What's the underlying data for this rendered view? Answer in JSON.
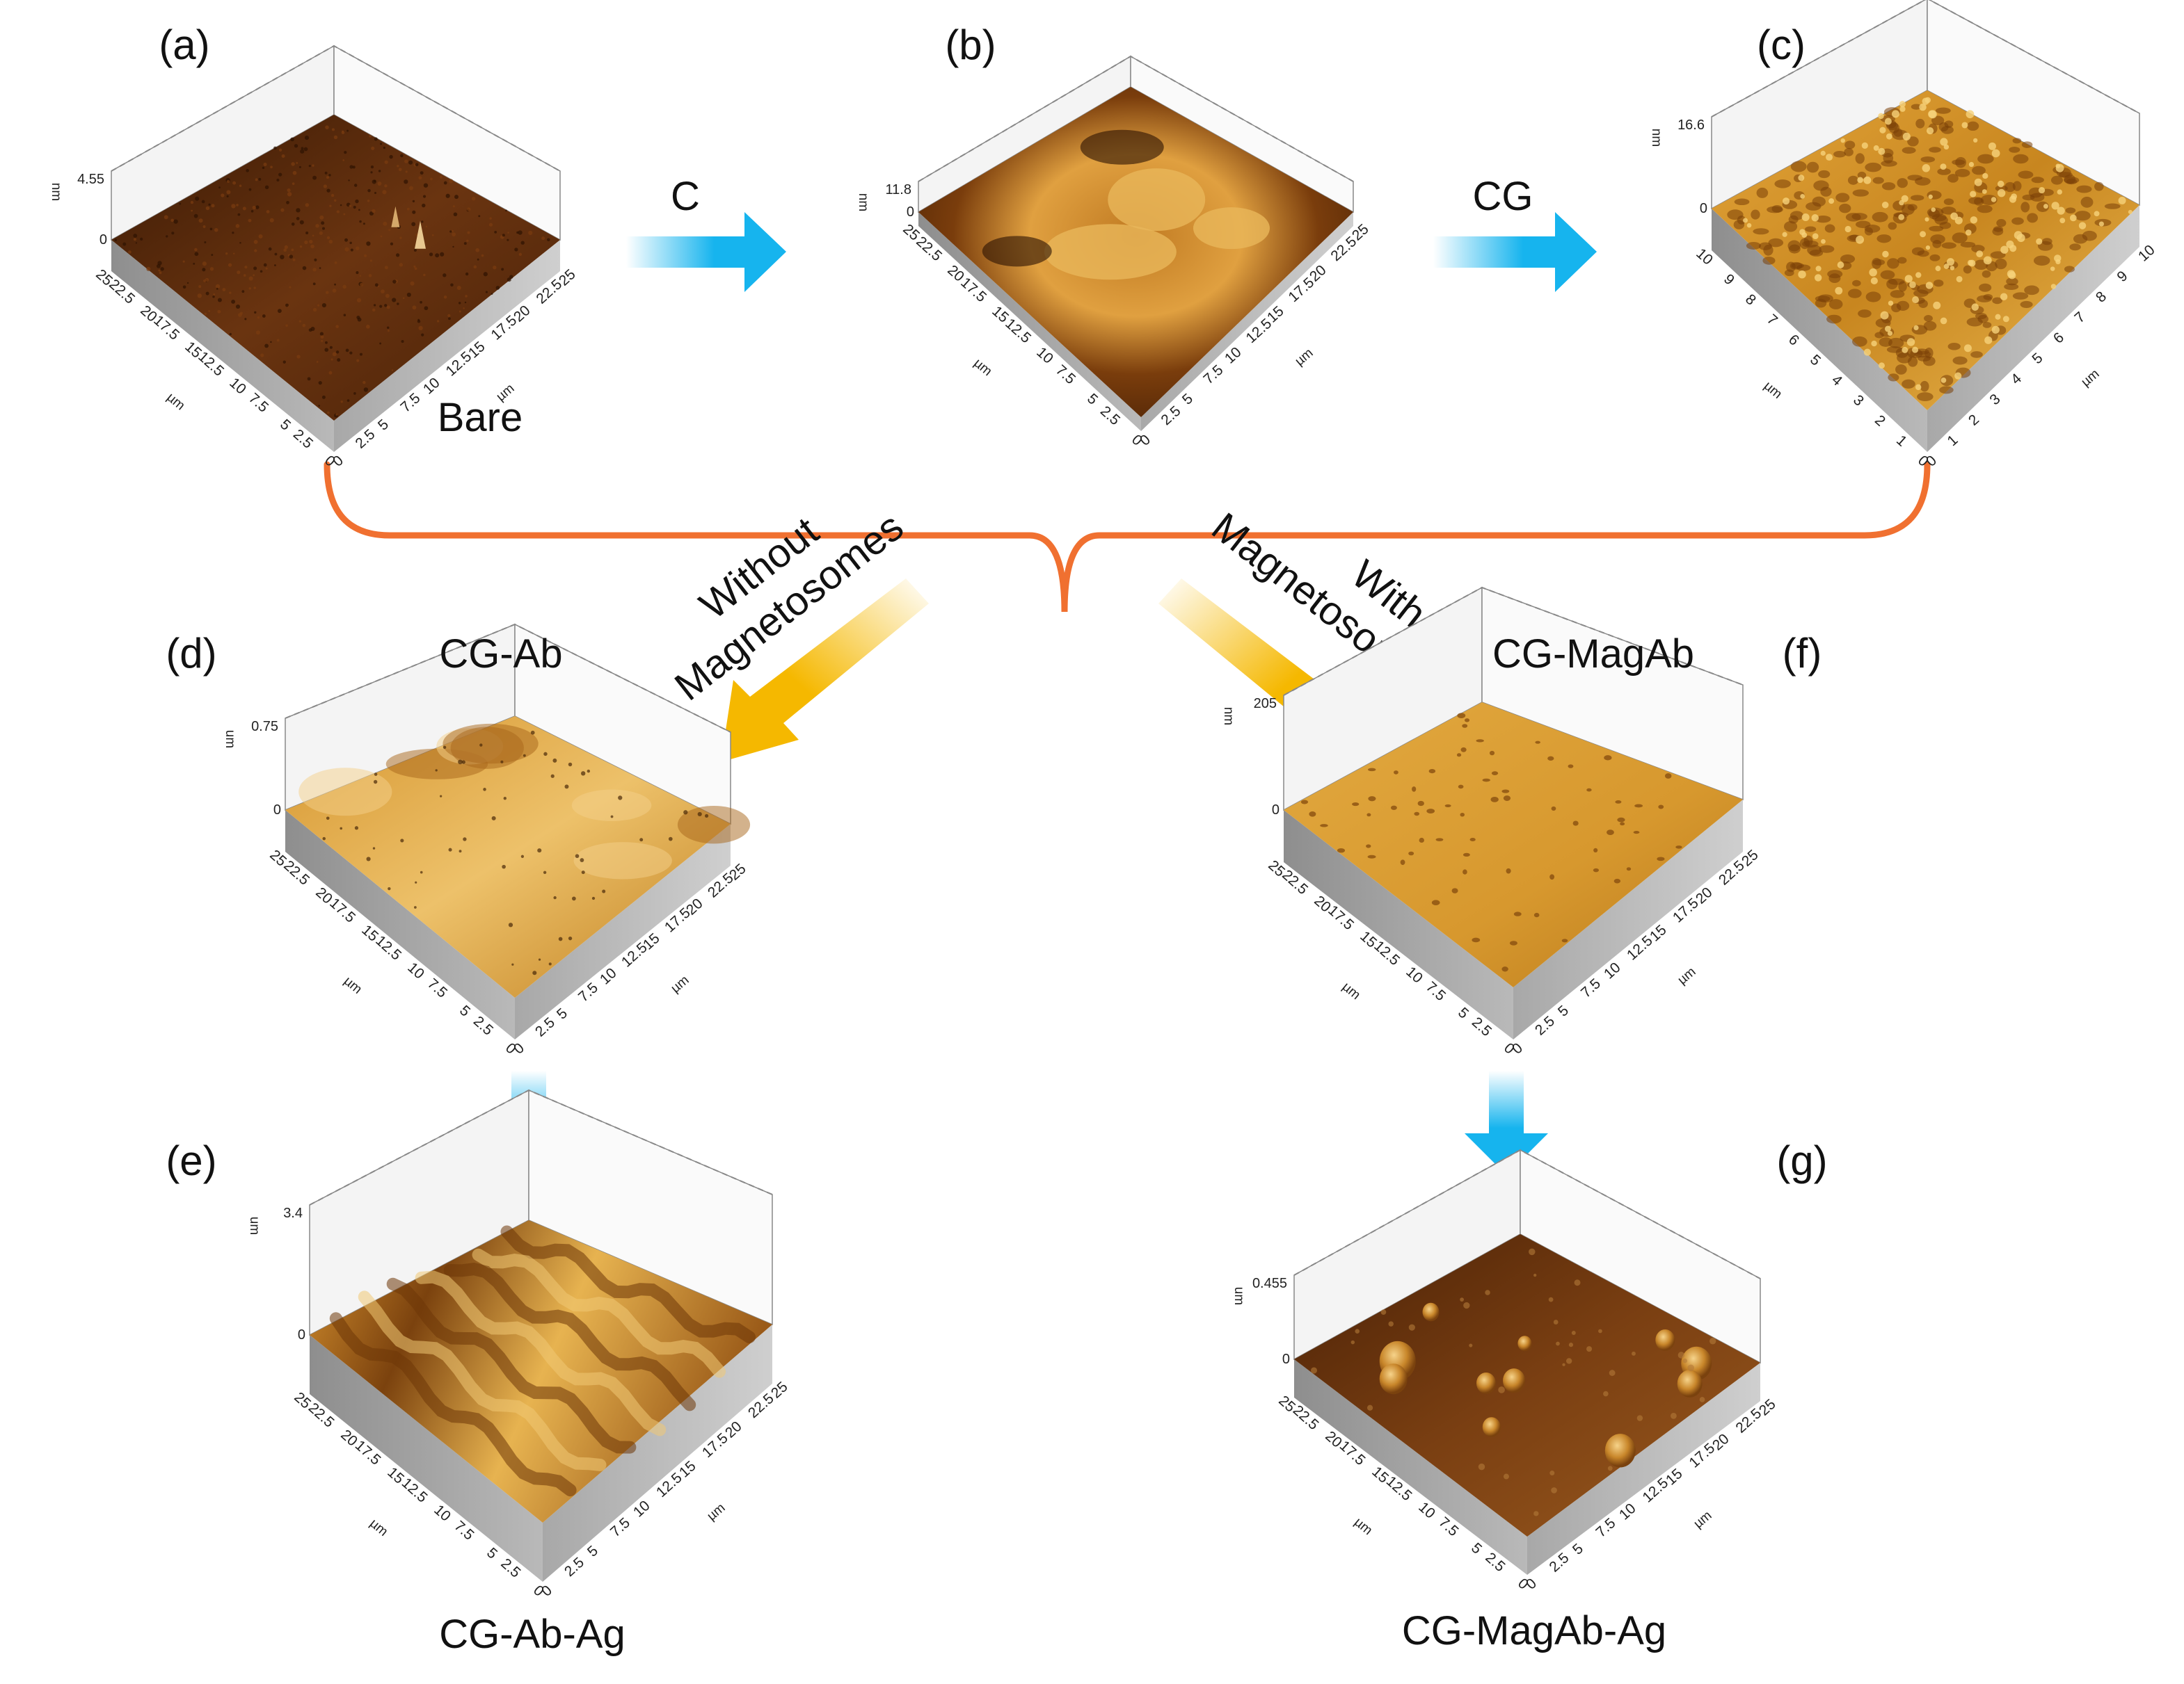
{
  "panels": {
    "a": {
      "letter": "(a)",
      "label": "Bare",
      "z_unit": "nm",
      "z_max": "4.55",
      "z_zero": "0",
      "xy_unit": "µm",
      "ticks": [
        "0",
        "2.5",
        "5",
        "7.5",
        "10",
        "12.5",
        "15",
        "17.5",
        "20",
        "22.5",
        "25"
      ]
    },
    "b": {
      "letter": "(b)",
      "z_unit": "nm",
      "z_max": "11.8",
      "z_zero": "0",
      "xy_unit": "µm",
      "ticks": [
        "0",
        "2.5",
        "5",
        "7.5",
        "10",
        "12.5",
        "15",
        "17.5",
        "20",
        "22.5",
        "25"
      ]
    },
    "c": {
      "letter": "(c)",
      "z_unit": "nm",
      "z_max": "16.6",
      "z_zero": "0",
      "xy_unit": "µm",
      "ticks": [
        "0",
        "1",
        "2",
        "3",
        "4",
        "5",
        "6",
        "7",
        "8",
        "9",
        "10"
      ]
    },
    "d": {
      "letter": "(d)",
      "label": "CG-Ab",
      "z_unit": "um",
      "z_max": "0.75",
      "z_zero": "0",
      "xy_unit": "µm",
      "ticks": [
        "0",
        "2.5",
        "5",
        "7.5",
        "10",
        "12.5",
        "15",
        "17.5",
        "20",
        "22.5",
        "25"
      ]
    },
    "e": {
      "letter": "(e)",
      "label": "CG-Ab-Ag",
      "z_unit": "um",
      "z_max": "3.4",
      "z_zero": "0",
      "xy_unit": "µm",
      "ticks": [
        "0",
        "2.5",
        "5",
        "7.5",
        "10",
        "12.5",
        "15",
        "17.5",
        "20",
        "22.5",
        "25"
      ]
    },
    "f": {
      "letter": "(f)",
      "label": "CG-MagAb",
      "z_unit": "nm",
      "z_max": "205",
      "z_zero": "0",
      "xy_unit": "µm",
      "ticks": [
        "0",
        "2.5",
        "5",
        "7.5",
        "10",
        "12.5",
        "15",
        "17.5",
        "20",
        "22.5",
        "25"
      ]
    },
    "g": {
      "letter": "(g)",
      "label": "CG-MagAb-Ag",
      "z_unit": "um",
      "z_max": "0.455",
      "z_zero": "0",
      "xy_unit": "µm",
      "ticks": [
        "0",
        "2.5",
        "5",
        "7.5",
        "10",
        "12.5",
        "15",
        "17.5",
        "20",
        "22.5",
        "25"
      ]
    }
  },
  "arrows": {
    "a_to_b": "C",
    "b_to_c": "CG",
    "without": [
      "Without",
      "Magnetosomes"
    ],
    "with": [
      "With",
      "Magnetosomes"
    ]
  },
  "colors": {
    "blue_arrow": "#16b4ee",
    "yellow_arrow": "#f5b800",
    "bracket": "#f07030",
    "dark_surface": "#5a2a08",
    "light_surface": "#e0a030"
  }
}
